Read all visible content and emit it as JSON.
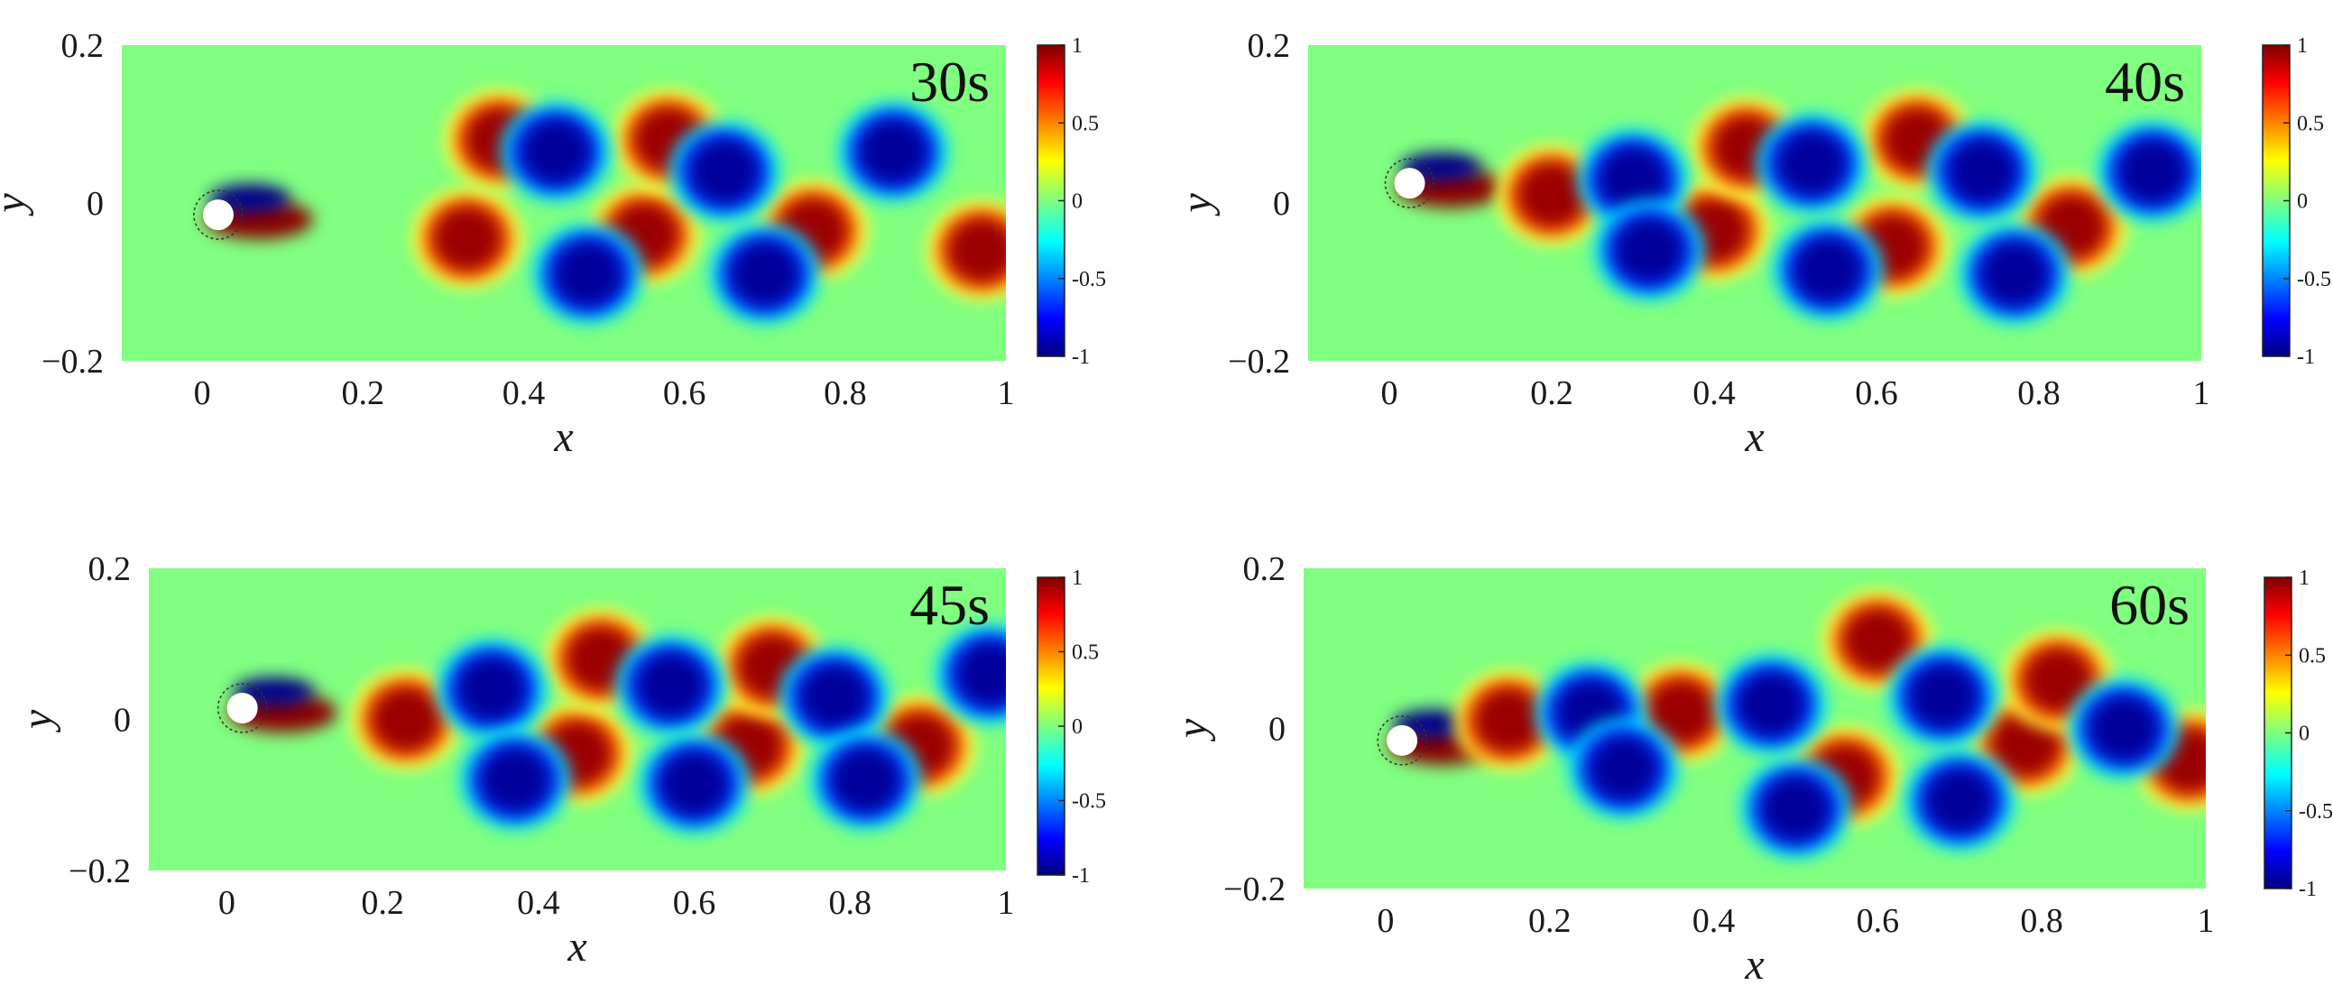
{
  "chart_data": [
    {
      "type": "heatmap",
      "title": "",
      "annotation": "30s",
      "xlabel": "x",
      "ylabel": "y",
      "xlim": [
        -0.1,
        1
      ],
      "ylim": [
        -0.2,
        0.2
      ],
      "x_ticks": [
        "0",
        "0.2",
        "0.4",
        "0.6",
        "0.8",
        "1"
      ],
      "y_ticks": [
        "0.2",
        "0",
        "−0.2"
      ],
      "colorbar": {
        "range": [
          -1,
          1
        ],
        "ticks": [
          "1",
          "0.5",
          "0",
          "-0.5",
          "-1"
        ],
        "colormap": "jet"
      },
      "cylinder": {
        "x": 0.02,
        "y": -0.015
      },
      "vortices": [
        {
          "x": 0.33,
          "y": -0.045,
          "value": 1
        },
        {
          "x": 0.37,
          "y": 0.08,
          "value": 1
        },
        {
          "x": 0.55,
          "y": -0.04,
          "value": 1
        },
        {
          "x": 0.58,
          "y": 0.08,
          "value": 1
        },
        {
          "x": 0.76,
          "y": -0.035,
          "value": 1
        },
        {
          "x": 0.97,
          "y": -0.06,
          "value": 1
        },
        {
          "x": 0.44,
          "y": 0.065,
          "value": -1
        },
        {
          "x": 0.48,
          "y": -0.09,
          "value": -1
        },
        {
          "x": 0.65,
          "y": 0.04,
          "value": -1
        },
        {
          "x": 0.7,
          "y": -0.09,
          "value": -1
        },
        {
          "x": 0.86,
          "y": 0.065,
          "value": -1
        }
      ]
    },
    {
      "type": "heatmap",
      "title": "",
      "annotation": "40s",
      "xlabel": "x",
      "ylabel": "y",
      "xlim": [
        -0.1,
        1
      ],
      "ylim": [
        -0.2,
        0.2
      ],
      "x_ticks": [
        "0",
        "0.2",
        "0.4",
        "0.6",
        "0.8",
        "1"
      ],
      "y_ticks": [
        "0.2",
        "0",
        "−0.2"
      ],
      "colorbar": {
        "range": [
          -1,
          1
        ],
        "ticks": [
          "1",
          "0.5",
          "0",
          "-0.5",
          "-1"
        ],
        "colormap": "jet"
      },
      "cylinder": {
        "x": 0.025,
        "y": 0.025
      },
      "vortices": [
        {
          "x": 0.2,
          "y": 0.01,
          "value": 1
        },
        {
          "x": 0.4,
          "y": -0.035,
          "value": 1
        },
        {
          "x": 0.44,
          "y": 0.07,
          "value": 1
        },
        {
          "x": 0.62,
          "y": -0.055,
          "value": 1
        },
        {
          "x": 0.65,
          "y": 0.08,
          "value": 1
        },
        {
          "x": 0.84,
          "y": -0.03,
          "value": 1
        },
        {
          "x": 0.3,
          "y": 0.03,
          "value": -1
        },
        {
          "x": 0.32,
          "y": -0.06,
          "value": -1
        },
        {
          "x": 0.52,
          "y": 0.05,
          "value": -1
        },
        {
          "x": 0.54,
          "y": -0.085,
          "value": -1
        },
        {
          "x": 0.73,
          "y": 0.04,
          "value": -1
        },
        {
          "x": 0.77,
          "y": -0.09,
          "value": -1
        },
        {
          "x": 0.94,
          "y": 0.04,
          "value": -1
        }
      ]
    },
    {
      "type": "heatmap",
      "title": "",
      "annotation": "45s",
      "xlabel": "x",
      "ylabel": "y",
      "xlim": [
        -0.1,
        1
      ],
      "ylim": [
        -0.2,
        0.2
      ],
      "x_ticks": [
        "0",
        "0.2",
        "0.4",
        "0.6",
        "0.8",
        "1"
      ],
      "y_ticks": [
        "0.2",
        "0",
        "−0.2"
      ],
      "colorbar": {
        "range": [
          -1,
          1
        ],
        "ticks": [
          "1",
          "0.5",
          "0",
          "-0.5",
          "-1"
        ],
        "colormap": "jet"
      },
      "cylinder": {
        "x": 0.02,
        "y": 0.015
      },
      "vortices": [
        {
          "x": 0.23,
          "y": 0.0,
          "value": 1
        },
        {
          "x": 0.45,
          "y": -0.045,
          "value": 1
        },
        {
          "x": 0.48,
          "y": 0.08,
          "value": 1
        },
        {
          "x": 0.67,
          "y": -0.035,
          "value": 1
        },
        {
          "x": 0.7,
          "y": 0.07,
          "value": 1
        },
        {
          "x": 0.89,
          "y": -0.035,
          "value": 1
        },
        {
          "x": 0.34,
          "y": 0.04,
          "value": -1
        },
        {
          "x": 0.37,
          "y": -0.08,
          "value": -1
        },
        {
          "x": 0.57,
          "y": 0.045,
          "value": -1
        },
        {
          "x": 0.6,
          "y": -0.085,
          "value": -1
        },
        {
          "x": 0.78,
          "y": 0.03,
          "value": -1
        },
        {
          "x": 0.82,
          "y": -0.08,
          "value": -1
        },
        {
          "x": 0.98,
          "y": 0.06,
          "value": -1
        }
      ]
    },
    {
      "type": "heatmap",
      "title": "",
      "annotation": "60s",
      "xlabel": "x",
      "ylabel": "y",
      "xlim": [
        -0.1,
        1
      ],
      "ylim": [
        -0.2,
        0.2
      ],
      "x_ticks": [
        "0",
        "0.2",
        "0.4",
        "0.6",
        "0.8",
        "1"
      ],
      "y_ticks": [
        "0.2",
        "0",
        "−0.2"
      ],
      "colorbar": {
        "range": [
          -1,
          1
        ],
        "ticks": [
          "1",
          "0.5",
          "0",
          "-0.5",
          "-1"
        ],
        "colormap": "jet"
      },
      "cylinder": {
        "x": 0.02,
        "y": -0.015
      },
      "vortices": [
        {
          "x": 0.15,
          "y": 0.01,
          "value": 1
        },
        {
          "x": 0.36,
          "y": 0.02,
          "value": 1
        },
        {
          "x": 0.56,
          "y": -0.06,
          "value": 1
        },
        {
          "x": 0.6,
          "y": 0.11,
          "value": 1
        },
        {
          "x": 0.78,
          "y": -0.02,
          "value": 1
        },
        {
          "x": 0.82,
          "y": 0.06,
          "value": 1
        },
        {
          "x": 0.98,
          "y": -0.04,
          "value": 1
        },
        {
          "x": 0.25,
          "y": 0.02,
          "value": -1
        },
        {
          "x": 0.29,
          "y": -0.05,
          "value": -1
        },
        {
          "x": 0.47,
          "y": 0.03,
          "value": -1
        },
        {
          "x": 0.5,
          "y": -0.1,
          "value": -1
        },
        {
          "x": 0.68,
          "y": 0.04,
          "value": -1
        },
        {
          "x": 0.7,
          "y": -0.09,
          "value": -1
        },
        {
          "x": 0.9,
          "y": 0.0,
          "value": -1
        }
      ]
    }
  ]
}
